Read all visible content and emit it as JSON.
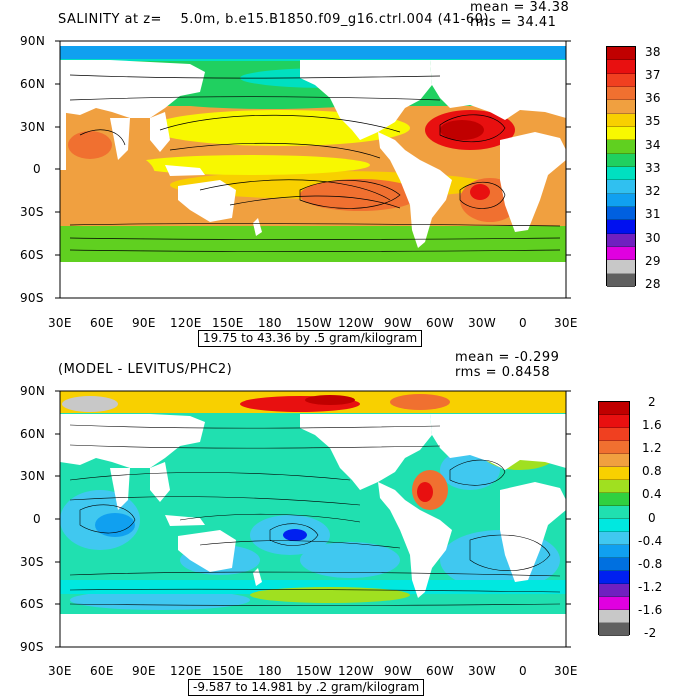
{
  "panel_top": {
    "title": "SALINITY at z=    5.0m, b.e15.B1850.f09_g16.ctrl.004 (41-60)",
    "mean": "mean = 34.38",
    "rms": "rms = 34.41",
    "range_note": "19.75 to 43.36 by .5 gram/kilogram",
    "lat_labels": [
      "90N",
      "60N",
      "30N",
      "0",
      "30S",
      "60S",
      "90S"
    ],
    "lon_labels": [
      "30E",
      "60E",
      "90E",
      "120E",
      "150E",
      "180",
      "150W",
      "120W",
      "90W",
      "60W",
      "30W",
      "0",
      "30E"
    ],
    "colorbar": {
      "labels": [
        "38",
        "37",
        "36",
        "35",
        "34",
        "33",
        "32",
        "31",
        "30",
        "29",
        "28"
      ],
      "colors": [
        "#c00000",
        "#e81010",
        "#f04020",
        "#f07030",
        "#f0a040",
        "#f8d000",
        "#f8f800",
        "#60d020",
        "#20d060",
        "#00e0c0",
        "#30c0f0",
        "#10a0f0",
        "#0060e0",
        "#0010f0",
        "#7020c0",
        "#e000e0",
        "#c8c8c8",
        "#606060"
      ]
    }
  },
  "panel_bottom": {
    "title": "(MODEL - LEVITUS/PHC2)",
    "mean": "mean = -0.299",
    "rms": "rms = 0.8458",
    "range_note": "-9.587 to 14.981 by .2 gram/kilogram",
    "lat_labels": [
      "90N",
      "60N",
      "30N",
      "0",
      "30S",
      "60S",
      "90S"
    ],
    "lon_labels": [
      "30E",
      "60E",
      "90E",
      "120E",
      "150E",
      "180",
      "150W",
      "120W",
      "90W",
      "60W",
      "30W",
      "0",
      "30E"
    ],
    "colorbar": {
      "labels": [
        "2",
        "1.6",
        "1.2",
        "0.8",
        "0.4",
        "0",
        "-0.4",
        "-0.8",
        "-1.2",
        "-1.6",
        "-2"
      ],
      "colors": [
        "#c00000",
        "#e81010",
        "#f04020",
        "#f07030",
        "#f0a040",
        "#f8d000",
        "#a0e020",
        "#30d040",
        "#20e0b0",
        "#00e8e0",
        "#40c8f0",
        "#10a0f0",
        "#0070e0",
        "#0020f0",
        "#7020c0",
        "#e000e0",
        "#c8c8c8",
        "#606060"
      ]
    }
  },
  "colors": {
    "ocean_top_warm": "#f0a040",
    "ocean_top_cool": "#20d060",
    "ocean_bottom_main": "#20e0b0",
    "land": "#ffffff"
  }
}
